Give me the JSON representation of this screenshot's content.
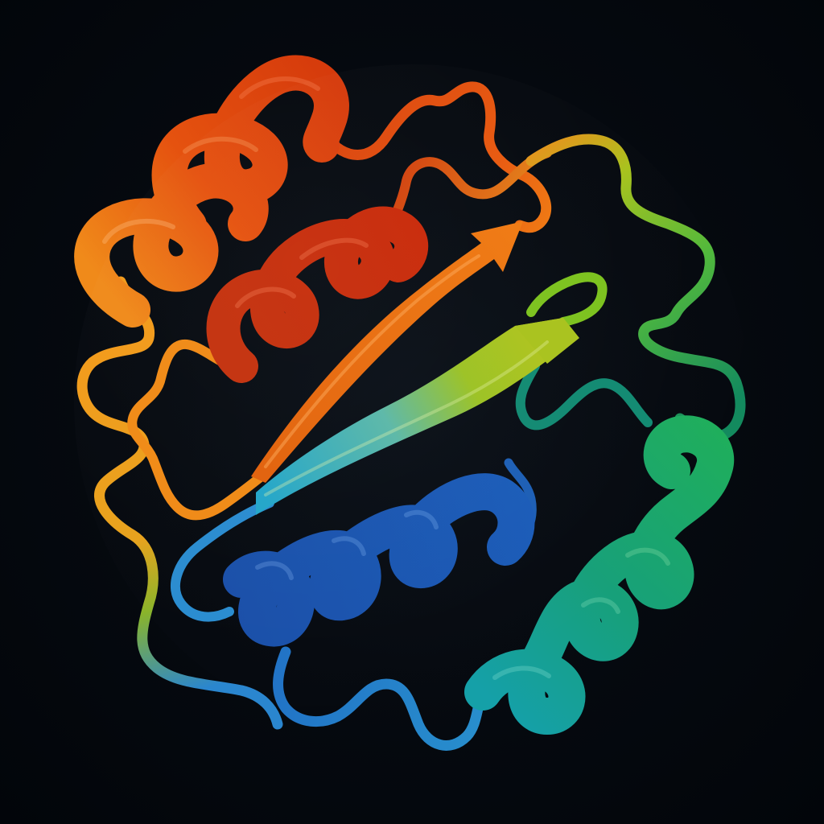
{
  "scene": {
    "subject": "protein-ribbon-structure",
    "background_color": "#03070d"
  },
  "palette": {
    "red": "#c8300c",
    "red_orange": "#e2460f",
    "orange": "#f07a12",
    "amber": "#f29a1a",
    "yellow_green": "#a8c21c",
    "lime": "#6cc41e",
    "green": "#1fa35a",
    "teal": "#149a8e",
    "cyan": "#23a6c9",
    "sky_blue": "#2a86cf",
    "royal_blue": "#1e5cb8",
    "deep_blue": "#163f92"
  }
}
